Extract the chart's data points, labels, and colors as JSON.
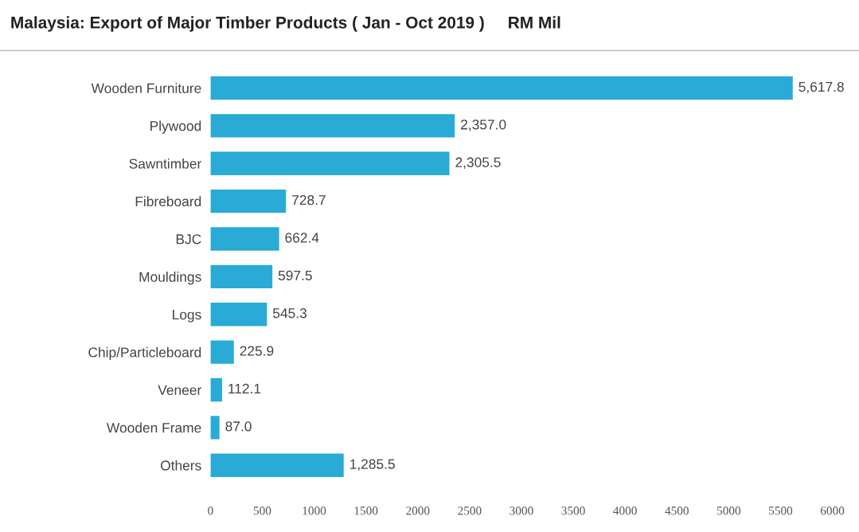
{
  "chart_data": {
    "type": "bar",
    "orientation": "horizontal",
    "title": "Malaysia: Export of Major Timber Products ( Jan - Oct 2019 )     RM Mil",
    "categories": [
      "Wooden Furniture",
      "Plywood",
      "Sawntimber",
      "Fibreboard",
      "BJC",
      "Mouldings",
      "Logs",
      "Chip/Particleboard",
      "Veneer",
      "Wooden Frame",
      "Others"
    ],
    "values": [
      5617.8,
      2357.0,
      2305.5,
      728.7,
      662.4,
      597.5,
      545.3,
      225.9,
      112.1,
      87.0,
      1285.5
    ],
    "value_labels": [
      "5,617.8",
      "2,357.0",
      "2,305.5",
      "728.7",
      "662.4",
      "597.5",
      "545.3",
      "225.9",
      "112.1",
      "87.0",
      "1,285.5"
    ],
    "color": "#29abd6",
    "xlim": [
      0,
      6000
    ],
    "xticks": [
      0,
      500,
      1000,
      1500,
      2000,
      2500,
      3000,
      3500,
      4000,
      4500,
      5000,
      5500,
      6000
    ],
    "grid": false,
    "legend": false
  }
}
